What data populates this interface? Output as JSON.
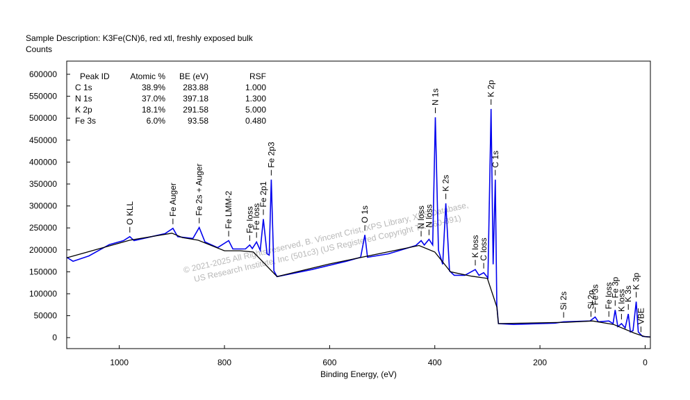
{
  "chart_data": {
    "type": "line",
    "title": "Sample Description:  K3Fe(CN)6, red xtl, freshly exposed bulk",
    "ylabel": "Counts",
    "xlabel": "Binding Energy, (eV)",
    "xlim": [
      1100,
      -10
    ],
    "ylim": [
      -25000,
      630000
    ],
    "xticks": [
      1000,
      800,
      600,
      400,
      200,
      0
    ],
    "yticks": [
      0,
      50000,
      100000,
      150000,
      200000,
      250000,
      300000,
      350000,
      400000,
      450000,
      500000,
      550000,
      600000
    ],
    "series": [
      {
        "color": "#0000ee",
        "x": [
          1100,
          1088,
          1058,
          1019,
          992,
          980,
          972,
          939,
          913,
          898,
          889,
          860,
          848,
          837,
          813,
          792,
          784,
          760,
          752,
          747,
          739,
          732,
          726,
          719,
          715,
          711,
          706,
          700,
          634,
          568,
          541,
          533,
          528,
          488,
          436,
          426,
          420,
          411,
          404,
          399,
          393,
          385,
          379,
          372,
          363,
          343,
          323,
          316,
          307,
          299,
          293,
          289,
          285,
          282,
          279,
          250,
          171,
          155,
          105,
          95,
          89,
          69,
          61,
          57,
          52,
          45,
          38,
          32,
          28,
          23,
          17,
          13,
          5,
          -4,
          -10
        ],
        "values": [
          183000,
          174000,
          186000,
          212000,
          221000,
          230000,
          221000,
          230000,
          237000,
          249000,
          230000,
          226000,
          251000,
          218000,
          205000,
          221000,
          202000,
          202000,
          211000,
          203000,
          218000,
          199000,
          270000,
          191000,
          188000,
          360000,
          152000,
          139000,
          155000,
          174000,
          183000,
          234000,
          183000,
          191000,
          210000,
          221000,
          211000,
          224000,
          211000,
          502000,
          199000,
          167000,
          306000,
          152000,
          142000,
          142000,
          155000,
          142000,
          148000,
          136000,
          521000,
          167000,
          360000,
          73000,
          32000,
          30000,
          33000,
          36000,
          38000,
          47000,
          36000,
          38000,
          32000,
          63000,
          25000,
          32000,
          22000,
          54000,
          13000,
          16000,
          82000,
          13000,
          3000,
          2000,
          1500
        ]
      },
      {
        "color": "#000000",
        "x": [
          1100,
          980,
          900,
          880,
          850,
          800,
          770,
          745,
          700,
          600,
          430,
          400,
          370,
          330,
          300,
          282,
          279,
          150,
          100,
          60,
          20,
          0,
          -10
        ],
        "values": [
          182000,
          222000,
          238000,
          228000,
          222000,
          198000,
          198000,
          195000,
          139000,
          168000,
          210000,
          195000,
          150000,
          140000,
          135000,
          70000,
          32000,
          35000,
          38000,
          30000,
          10000,
          2000,
          1500
        ]
      }
    ],
    "annotations": [
      {
        "text": "O KLL",
        "x": 980
      },
      {
        "text": "Fe Auger",
        "x": 898
      },
      {
        "text": "Fe 2s + Auger",
        "x": 848
      },
      {
        "text": "Fe LMM-2",
        "x": 792
      },
      {
        "text": "Fe loss",
        "x": 752
      },
      {
        "text": "Fe loss",
        "x": 739
      },
      {
        "text": "Fe 2p1",
        "x": 726
      },
      {
        "text": "Fe 2p3",
        "x": 711
      },
      {
        "text": "O 1s",
        "x": 533
      },
      {
        "text": "N loss",
        "x": 426
      },
      {
        "text": "N loss",
        "x": 411
      },
      {
        "text": "N 1s",
        "x": 399
      },
      {
        "text": "K 2s",
        "x": 379
      },
      {
        "text": "K loss",
        "x": 323
      },
      {
        "text": "C loss",
        "x": 307
      },
      {
        "text": "K 2p",
        "x": 293
      },
      {
        "text": "C 1s",
        "x": 285
      },
      {
        "text": "Si 2s",
        "x": 155
      },
      {
        "text": "Si 2p",
        "x": 103
      },
      {
        "text": "Fe 3s",
        "x": 95
      },
      {
        "text": "Fe loss",
        "x": 69
      },
      {
        "text": "Fe 3p",
        "x": 57
      },
      {
        "text": "K loss",
        "x": 45
      },
      {
        "text": "K 3s",
        "x": 32
      },
      {
        "text": "K 3p",
        "x": 17
      },
      {
        "text": "VBE",
        "x": 8
      }
    ],
    "table": {
      "columns": [
        "Peak ID",
        "Atomic %",
        "BE (eV)",
        "RSF"
      ],
      "rows": [
        [
          "C 1s",
          "38.9%",
          "283.88",
          "1.000"
        ],
        [
          "N 1s",
          "37.0%",
          "397.18",
          "1.300"
        ],
        [
          "K 2p",
          "18.1%",
          "291.58",
          "5.000"
        ],
        [
          "Fe 3s",
          "6.0%",
          "93.58",
          "0.480"
        ]
      ]
    },
    "watermark": [
      "© 2021-2025   All Rights reserved,   B. Vincent Crist,   XPS Library,  XPS Database,",
      "US Research Institute, Inc (501c3)   (US Registered Copyright  TX-560-891)"
    ]
  }
}
